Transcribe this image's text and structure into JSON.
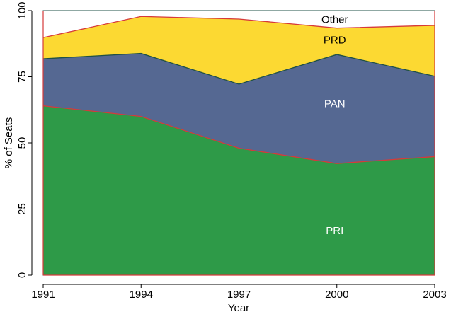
{
  "chart_data": {
    "type": "area",
    "stacked": true,
    "title": "",
    "xlabel": "Year",
    "ylabel": "% of Seats",
    "x": [
      1991,
      1994,
      1997,
      2000,
      2003
    ],
    "x_tick_labels": [
      "1991",
      "1994",
      "1997",
      "2000",
      "2003"
    ],
    "ylim": [
      0,
      100
    ],
    "y_tick_values": [
      0,
      25,
      50,
      75,
      100
    ],
    "y_tick_labels": [
      "0",
      "25",
      "50",
      "75",
      "100"
    ],
    "grid": false,
    "legend": "none (series labeled inside areas)",
    "series": [
      {
        "name": "PRI",
        "values": [
          64,
          60,
          48,
          42.2,
          44.8
        ],
        "color": "#2e9a48",
        "label_color": "#ffffff"
      },
      {
        "name": "PAN",
        "values": [
          17.8,
          23.8,
          24.2,
          41.2,
          30.4
        ],
        "color": "#556892",
        "label_color": "#ffffff"
      },
      {
        "name": "PRD",
        "values": [
          8,
          14,
          24.6,
          10,
          19.2
        ],
        "color": "#fcd932",
        "label_color": "#000000"
      },
      {
        "name": "Other",
        "values": [
          10.2,
          2.2,
          3.2,
          6.6,
          5.6
        ],
        "color": "#ffffff",
        "label_color": "#000000"
      }
    ],
    "edge_colors": {
      "PRI_top": "#d63a3a",
      "PAN_top": "#1f5047",
      "PRD_top": "#d63a3a",
      "frame": "#1f5047"
    }
  }
}
